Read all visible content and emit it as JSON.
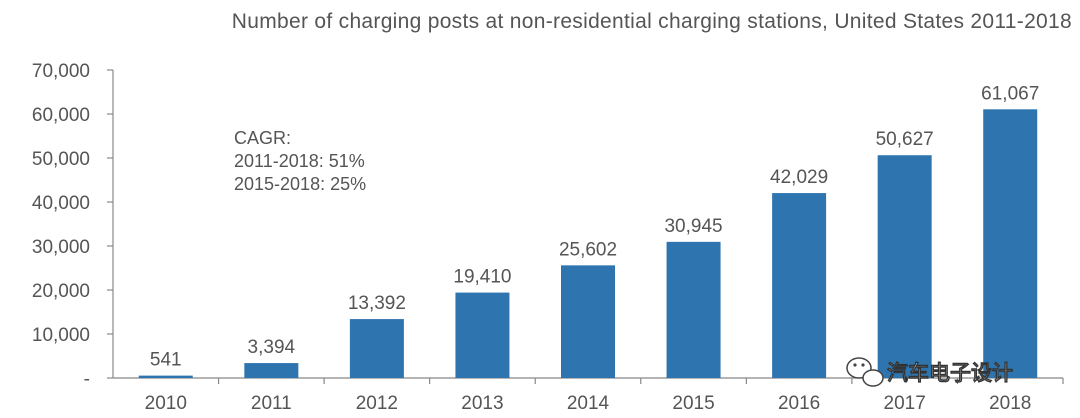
{
  "chart_data": {
    "type": "bar",
    "title": "Number of charging posts at non-residential charging stations, United States 2011-2018",
    "xlabel": "",
    "ylabel": "",
    "categories": [
      "2010",
      "2011",
      "2012",
      "2013",
      "2014",
      "2015",
      "2016",
      "2017",
      "2018"
    ],
    "values": [
      541,
      3394,
      13392,
      19410,
      25602,
      30945,
      42029,
      50627,
      61067
    ],
    "data_labels": [
      "541",
      "3,394",
      "13,392",
      "19,410",
      "25,602",
      "30,945",
      "42,029",
      "50,627",
      "61,067"
    ],
    "y_ticks": [
      0,
      10000,
      20000,
      30000,
      40000,
      50000,
      60000,
      70000
    ],
    "y_tick_labels": [
      "-",
      "10,000",
      "20,000",
      "30,000",
      "40,000",
      "50,000",
      "60,000",
      "70,000"
    ],
    "ylim": [
      0,
      70000
    ],
    "grid": false,
    "bar_color": "#2e75b0",
    "annotation": [
      "CAGR:",
      "2011-2018: 51%",
      "2015-2018: 25%"
    ]
  },
  "watermark": {
    "text": "汽车电子设计",
    "icon": "wechat-icon"
  },
  "colors": {
    "text": "#555555",
    "axis": "#888888"
  }
}
